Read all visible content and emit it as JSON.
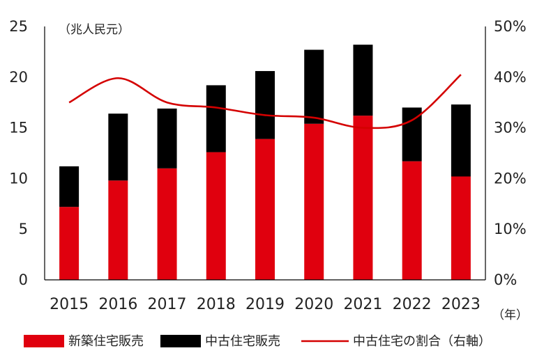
{
  "chart_data": {
    "type": "bar",
    "stacked": true,
    "categories": [
      "2015",
      "2016",
      "2017",
      "2018",
      "2019",
      "2020",
      "2021",
      "2022",
      "2023"
    ],
    "series": [
      {
        "name": "新築住宅販売",
        "kind": "bar",
        "axis": "left",
        "color": "#e0000e",
        "values": [
          7.2,
          9.8,
          11.0,
          12.6,
          13.9,
          15.4,
          16.2,
          11.7,
          10.2
        ]
      },
      {
        "name": "中古住宅販売",
        "kind": "bar",
        "axis": "left",
        "color": "#000000",
        "values": [
          4.0,
          6.6,
          5.9,
          6.6,
          6.7,
          7.3,
          7.0,
          5.3,
          7.1
        ]
      },
      {
        "name": "中古住宅の割合（右軸）",
        "kind": "line",
        "axis": "right",
        "color": "#d40000",
        "values": [
          35.0,
          39.8,
          35.0,
          34.0,
          32.5,
          32.0,
          30.0,
          31.5,
          40.5
        ]
      }
    ],
    "left_axis": {
      "ylim": [
        0,
        25
      ],
      "ticks": [
        "0",
        "5",
        "10",
        "15",
        "20",
        "25"
      ],
      "unit_label": "（兆人民元）"
    },
    "right_axis": {
      "ylim": [
        0,
        50
      ],
      "ticks": [
        "0%",
        "10%",
        "20%",
        "30%",
        "40%",
        "50%"
      ]
    },
    "x_unit_label": "（年）",
    "legend_position": "bottom",
    "grid": false
  }
}
